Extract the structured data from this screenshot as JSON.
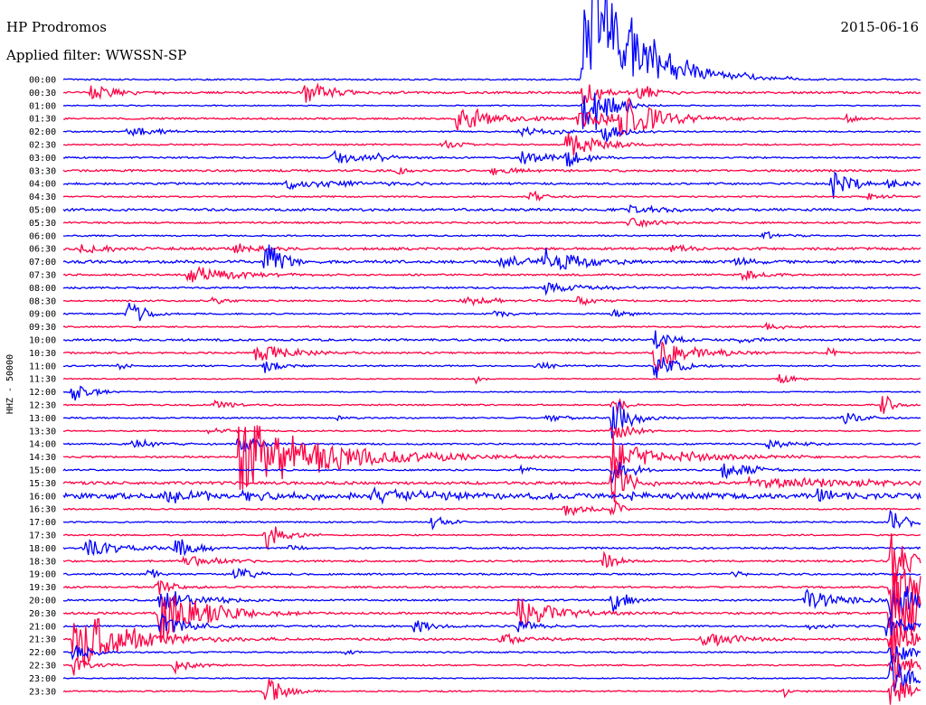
{
  "chart_data": {
    "type": "line",
    "title": "HP Prodromos",
    "subtitle": "Applied filter: WWSSN-SP",
    "date": "2015-06-16",
    "ylabel": "HHZ - 50000",
    "xlabel": "",
    "series_colors": [
      "#0000ff",
      "#ff0044"
    ],
    "grid": false,
    "legend": "none",
    "rows": [
      {
        "label": "00:00",
        "color": "#0000ff",
        "noise": 0.08,
        "events": [
          {
            "t": 0.606,
            "amp": 9.0,
            "dur": 0.05,
            "dir": "up"
          },
          {
            "t": 0.618,
            "amp": 11.0,
            "dur": 0.06,
            "dir": "up"
          },
          {
            "t": 0.63,
            "amp": 1.2,
            "dur": 0.08
          }
        ]
      },
      {
        "label": "00:30",
        "color": "#ff0044",
        "noise": 0.12,
        "events": [
          {
            "t": 0.032,
            "amp": 1.0,
            "dur": 0.03
          },
          {
            "t": 0.28,
            "amp": 1.8,
            "dur": 0.03
          },
          {
            "t": 0.606,
            "amp": 2.0,
            "dur": 0.02
          },
          {
            "t": 0.67,
            "amp": 1.2,
            "dur": 0.02
          }
        ]
      },
      {
        "label": "01:00",
        "color": "#0000ff",
        "noise": 0.06,
        "events": [
          {
            "t": 0.606,
            "amp": 4.0,
            "dur": 0.02
          },
          {
            "t": 0.618,
            "amp": 3.5,
            "dur": 0.02
          }
        ]
      },
      {
        "label": "01:30",
        "color": "#ff0044",
        "noise": 0.1,
        "events": [
          {
            "t": 0.46,
            "amp": 1.8,
            "dur": 0.04
          },
          {
            "t": 0.6,
            "amp": 1.2,
            "dur": 0.06
          },
          {
            "t": 0.65,
            "amp": 3.0,
            "dur": 0.04
          },
          {
            "t": 0.914,
            "amp": 0.8,
            "dur": 0.01
          }
        ]
      },
      {
        "label": "02:00",
        "color": "#0000ff",
        "noise": 0.08,
        "events": [
          {
            "t": 0.075,
            "amp": 0.8,
            "dur": 0.03
          },
          {
            "t": 0.53,
            "amp": 0.6,
            "dur": 0.05
          },
          {
            "t": 0.63,
            "amp": 1.5,
            "dur": 0.02
          }
        ]
      },
      {
        "label": "02:30",
        "color": "#ff0044",
        "noise": 0.08,
        "events": [
          {
            "t": 0.442,
            "amp": 0.7,
            "dur": 0.02
          },
          {
            "t": 0.586,
            "amp": 1.6,
            "dur": 0.04
          }
        ]
      },
      {
        "label": "03:00",
        "color": "#0000ff",
        "noise": 0.09,
        "events": [
          {
            "t": 0.31,
            "amp": 0.9,
            "dur": 0.04
          },
          {
            "t": 0.365,
            "amp": 0.6,
            "dur": 0.01
          },
          {
            "t": 0.535,
            "amp": 0.9,
            "dur": 0.03
          },
          {
            "t": 0.586,
            "amp": 1.5,
            "dur": 0.02
          }
        ]
      },
      {
        "label": "03:30",
        "color": "#ff0044",
        "noise": 0.12,
        "events": [
          {
            "t": 0.39,
            "amp": 0.5,
            "dur": 0.01
          },
          {
            "t": 0.5,
            "amp": 0.5,
            "dur": 0.03
          }
        ]
      },
      {
        "label": "04:00",
        "color": "#0000ff",
        "noise": 0.11,
        "events": [
          {
            "t": 0.26,
            "amp": 0.6,
            "dur": 0.08
          },
          {
            "t": 0.896,
            "amp": 2.2,
            "dur": 0.02
          },
          {
            "t": 0.963,
            "amp": 0.8,
            "dur": 0.02
          }
        ]
      },
      {
        "label": "04:30",
        "color": "#ff0044",
        "noise": 0.08,
        "events": [
          {
            "t": 0.545,
            "amp": 0.7,
            "dur": 0.02
          },
          {
            "t": 0.94,
            "amp": 0.6,
            "dur": 0.02
          }
        ]
      },
      {
        "label": "05:00",
        "color": "#0000ff",
        "noise": 0.14,
        "events": [
          {
            "t": 0.66,
            "amp": 0.5,
            "dur": 0.05
          }
        ]
      },
      {
        "label": "05:30",
        "color": "#ff0044",
        "noise": 0.1,
        "events": [
          {
            "t": 0.66,
            "amp": 0.6,
            "dur": 0.03
          }
        ]
      },
      {
        "label": "06:00",
        "color": "#0000ff",
        "noise": 0.08,
        "events": [
          {
            "t": 0.815,
            "amp": 0.6,
            "dur": 0.02
          }
        ]
      },
      {
        "label": "06:30",
        "color": "#ff0044",
        "noise": 0.14,
        "events": [
          {
            "t": 0.02,
            "amp": 0.5,
            "dur": 0.05
          },
          {
            "t": 0.2,
            "amp": 0.7,
            "dur": 0.03
          },
          {
            "t": 0.71,
            "amp": 0.5,
            "dur": 0.02
          }
        ]
      },
      {
        "label": "07:00",
        "color": "#0000ff",
        "noise": 0.16,
        "events": [
          {
            "t": 0.235,
            "amp": 2.8,
            "dur": 0.02
          },
          {
            "t": 0.51,
            "amp": 0.8,
            "dur": 0.03
          },
          {
            "t": 0.56,
            "amp": 1.6,
            "dur": 0.04
          },
          {
            "t": 0.785,
            "amp": 0.6,
            "dur": 0.02
          }
        ]
      },
      {
        "label": "07:30",
        "color": "#ff0044",
        "noise": 0.1,
        "events": [
          {
            "t": 0.145,
            "amp": 1.3,
            "dur": 0.05
          },
          {
            "t": 0.79,
            "amp": 1.0,
            "dur": 0.02
          }
        ]
      },
      {
        "label": "08:00",
        "color": "#0000ff",
        "noise": 0.1,
        "events": [
          {
            "t": 0.56,
            "amp": 0.7,
            "dur": 0.05
          }
        ]
      },
      {
        "label": "08:30",
        "color": "#ff0044",
        "noise": 0.1,
        "events": [
          {
            "t": 0.175,
            "amp": 0.6,
            "dur": 0.01
          },
          {
            "t": 0.465,
            "amp": 0.6,
            "dur": 0.04
          },
          {
            "t": 0.6,
            "amp": 0.6,
            "dur": 0.02
          }
        ]
      },
      {
        "label": "09:00",
        "color": "#0000ff",
        "noise": 0.08,
        "events": [
          {
            "t": 0.075,
            "amp": 1.8,
            "dur": 0.02
          },
          {
            "t": 0.5,
            "amp": 0.4,
            "dur": 0.03
          },
          {
            "t": 0.64,
            "amp": 0.6,
            "dur": 0.02
          }
        ]
      },
      {
        "label": "09:30",
        "color": "#ff0044",
        "noise": 0.08,
        "events": [
          {
            "t": 0.82,
            "amp": 0.4,
            "dur": 0.03
          }
        ]
      },
      {
        "label": "10:00",
        "color": "#0000ff",
        "noise": 0.12,
        "events": [
          {
            "t": 0.69,
            "amp": 1.2,
            "dur": 0.02
          },
          {
            "t": 0.79,
            "amp": 0.5,
            "dur": 0.02
          }
        ]
      },
      {
        "label": "10:30",
        "color": "#ff0044",
        "noise": 0.1,
        "events": [
          {
            "t": 0.225,
            "amp": 1.1,
            "dur": 0.04
          },
          {
            "t": 0.69,
            "amp": 2.6,
            "dur": 0.03
          },
          {
            "t": 0.76,
            "amp": 0.6,
            "dur": 0.03
          },
          {
            "t": 0.893,
            "amp": 0.7,
            "dur": 0.01
          }
        ]
      },
      {
        "label": "11:00",
        "color": "#0000ff",
        "noise": 0.08,
        "events": [
          {
            "t": 0.065,
            "amp": 0.5,
            "dur": 0.01
          },
          {
            "t": 0.235,
            "amp": 0.8,
            "dur": 0.02
          },
          {
            "t": 0.55,
            "amp": 0.6,
            "dur": 0.02
          },
          {
            "t": 0.69,
            "amp": 1.6,
            "dur": 0.03
          }
        ]
      },
      {
        "label": "11:30",
        "color": "#ff0044",
        "noise": 0.06,
        "events": [
          {
            "t": 0.48,
            "amp": 0.6,
            "dur": 0.01
          },
          {
            "t": 0.835,
            "amp": 0.6,
            "dur": 0.02
          }
        ]
      },
      {
        "label": "12:00",
        "color": "#0000ff",
        "noise": 0.06,
        "events": [
          {
            "t": 0.01,
            "amp": 1.2,
            "dur": 0.02
          }
        ]
      },
      {
        "label": "12:30",
        "color": "#ff0044",
        "noise": 0.08,
        "events": [
          {
            "t": 0.175,
            "amp": 0.6,
            "dur": 0.02
          },
          {
            "t": 0.64,
            "amp": 2.0,
            "dur": 0.01
          },
          {
            "t": 0.955,
            "amp": 2.0,
            "dur": 0.01
          }
        ]
      },
      {
        "label": "13:00",
        "color": "#0000ff",
        "noise": 0.08,
        "events": [
          {
            "t": 0.32,
            "amp": 0.5,
            "dur": 0.01
          },
          {
            "t": 0.565,
            "amp": 0.6,
            "dur": 0.02
          },
          {
            "t": 0.64,
            "amp": 3.0,
            "dur": 0.02
          },
          {
            "t": 0.91,
            "amp": 0.9,
            "dur": 0.02
          }
        ]
      },
      {
        "label": "13:30",
        "color": "#ff0044",
        "noise": 0.08,
        "events": [
          {
            "t": 0.17,
            "amp": 0.5,
            "dur": 0.02
          },
          {
            "t": 0.64,
            "amp": 1.4,
            "dur": 0.02
          }
        ]
      },
      {
        "label": "14:00",
        "color": "#0000ff",
        "noise": 0.09,
        "events": [
          {
            "t": 0.08,
            "amp": 0.6,
            "dur": 0.03
          },
          {
            "t": 0.205,
            "amp": 1.6,
            "dur": 0.02
          },
          {
            "t": 0.82,
            "amp": 0.6,
            "dur": 0.03
          }
        ]
      },
      {
        "label": "14:30",
        "color": "#ff0044",
        "noise": 0.1,
        "events": [
          {
            "t": 0.205,
            "amp": 4.6,
            "dur": 0.1
          },
          {
            "t": 0.64,
            "amp": 3.2,
            "dur": 0.03
          },
          {
            "t": 0.72,
            "amp": 0.5,
            "dur": 0.1
          }
        ]
      },
      {
        "label": "15:00",
        "color": "#0000ff",
        "noise": 0.09,
        "events": [
          {
            "t": 0.535,
            "amp": 0.7,
            "dur": 0.01
          },
          {
            "t": 0.64,
            "amp": 1.8,
            "dur": 0.02
          },
          {
            "t": 0.77,
            "amp": 1.3,
            "dur": 0.03
          }
        ]
      },
      {
        "label": "15:30",
        "color": "#ff0044",
        "noise": 0.16,
        "events": [
          {
            "t": 0.64,
            "amp": 2.8,
            "dur": 0.02
          },
          {
            "t": 0.8,
            "amp": 0.6,
            "dur": 0.2
          }
        ]
      },
      {
        "label": "16:00",
        "color": "#0000ff",
        "noise": 0.3,
        "events": [
          {
            "t": 0.12,
            "amp": 0.8,
            "dur": 0.12
          },
          {
            "t": 0.36,
            "amp": 0.7,
            "dur": 0.1
          },
          {
            "t": 0.66,
            "amp": 0.5,
            "dur": 0.05
          },
          {
            "t": 0.88,
            "amp": 0.8,
            "dur": 0.03
          }
        ]
      },
      {
        "label": "16:30",
        "color": "#ff0044",
        "noise": 0.08,
        "events": [
          {
            "t": 0.585,
            "amp": 1.0,
            "dur": 0.02
          },
          {
            "t": 0.64,
            "amp": 1.5,
            "dur": 0.01
          }
        ]
      },
      {
        "label": "17:00",
        "color": "#0000ff",
        "noise": 0.08,
        "events": [
          {
            "t": 0.43,
            "amp": 0.8,
            "dur": 0.02
          },
          {
            "t": 0.965,
            "amp": 1.6,
            "dur": 0.02
          }
        ]
      },
      {
        "label": "17:30",
        "color": "#ff0044",
        "noise": 0.08,
        "events": [
          {
            "t": 0.235,
            "amp": 2.2,
            "dur": 0.02
          }
        ]
      },
      {
        "label": "18:00",
        "color": "#0000ff",
        "noise": 0.1,
        "events": [
          {
            "t": 0.025,
            "amp": 1.0,
            "dur": 0.05
          },
          {
            "t": 0.13,
            "amp": 1.8,
            "dur": 0.02
          },
          {
            "t": 0.264,
            "amp": 0.6,
            "dur": 0.01
          }
        ]
      },
      {
        "label": "18:30",
        "color": "#ff0044",
        "noise": 0.1,
        "events": [
          {
            "t": 0.14,
            "amp": 0.7,
            "dur": 0.04
          },
          {
            "t": 0.63,
            "amp": 1.2,
            "dur": 0.02
          },
          {
            "t": 0.965,
            "amp": 4.0,
            "dur": 0.02
          }
        ]
      },
      {
        "label": "19:00",
        "color": "#0000ff",
        "noise": 0.1,
        "events": [
          {
            "t": 0.1,
            "amp": 0.9,
            "dur": 0.01
          },
          {
            "t": 0.2,
            "amp": 1.0,
            "dur": 0.02
          },
          {
            "t": 0.78,
            "amp": 0.6,
            "dur": 0.01
          }
        ]
      },
      {
        "label": "19:30",
        "color": "#ff0044",
        "noise": 0.1,
        "events": [
          {
            "t": 0.11,
            "amp": 1.0,
            "dur": 0.02
          },
          {
            "t": 0.965,
            "amp": 5.0,
            "dur": 0.03
          }
        ]
      },
      {
        "label": "20:00",
        "color": "#0000ff",
        "noise": 0.1,
        "events": [
          {
            "t": 0.112,
            "amp": 1.6,
            "dur": 0.04
          },
          {
            "t": 0.64,
            "amp": 1.4,
            "dur": 0.02
          },
          {
            "t": 0.865,
            "amp": 1.4,
            "dur": 0.04
          },
          {
            "t": 0.965,
            "amp": 3.0,
            "dur": 0.03
          }
        ]
      },
      {
        "label": "20:30",
        "color": "#ff0044",
        "noise": 0.12,
        "events": [
          {
            "t": 0.112,
            "amp": 3.5,
            "dur": 0.05
          },
          {
            "t": 0.53,
            "amp": 2.0,
            "dur": 0.04
          },
          {
            "t": 0.965,
            "amp": 6.0,
            "dur": 0.05
          }
        ]
      },
      {
        "label": "21:00",
        "color": "#0000ff",
        "noise": 0.1,
        "events": [
          {
            "t": 0.112,
            "amp": 1.6,
            "dur": 0.03
          },
          {
            "t": 0.41,
            "amp": 1.0,
            "dur": 0.02
          },
          {
            "t": 0.53,
            "amp": 0.8,
            "dur": 0.02
          },
          {
            "t": 0.87,
            "amp": 0.5,
            "dur": 0.02
          },
          {
            "t": 0.96,
            "amp": 1.5,
            "dur": 0.03
          }
        ]
      },
      {
        "label": "21:30",
        "color": "#ff0044",
        "noise": 0.12,
        "events": [
          {
            "t": 0.012,
            "amp": 4.0,
            "dur": 0.06
          },
          {
            "t": 0.51,
            "amp": 0.6,
            "dur": 0.03
          },
          {
            "t": 0.745,
            "amp": 1.0,
            "dur": 0.04
          },
          {
            "t": 0.965,
            "amp": 3.0,
            "dur": 0.02
          }
        ]
      },
      {
        "label": "22:00",
        "color": "#0000ff",
        "noise": 0.08,
        "events": [
          {
            "t": 0.012,
            "amp": 1.2,
            "dur": 0.02
          },
          {
            "t": 0.33,
            "amp": 0.5,
            "dur": 0.01
          },
          {
            "t": 0.965,
            "amp": 2.0,
            "dur": 0.02
          }
        ]
      },
      {
        "label": "22:30",
        "color": "#ff0044",
        "noise": 0.08,
        "events": [
          {
            "t": 0.012,
            "amp": 1.4,
            "dur": 0.02
          },
          {
            "t": 0.13,
            "amp": 1.0,
            "dur": 0.02
          },
          {
            "t": 0.965,
            "amp": 3.0,
            "dur": 0.02
          }
        ]
      },
      {
        "label": "23:00",
        "color": "#0000ff",
        "noise": 0.06,
        "events": [
          {
            "t": 0.965,
            "amp": 3.0,
            "dur": 0.02
          }
        ]
      },
      {
        "label": "23:30",
        "color": "#ff0044",
        "noise": 0.08,
        "events": [
          {
            "t": 0.235,
            "amp": 2.0,
            "dur": 0.02
          },
          {
            "t": 0.84,
            "amp": 0.8,
            "dur": 0.01
          },
          {
            "t": 0.965,
            "amp": 2.5,
            "dur": 0.02
          }
        ]
      }
    ]
  }
}
